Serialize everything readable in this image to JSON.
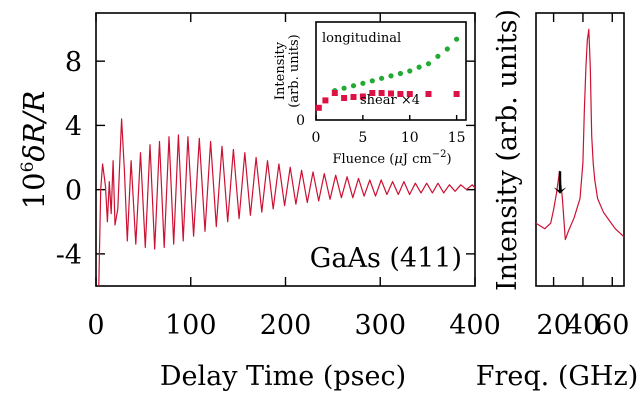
{
  "chart_data": [
    {
      "type": "line",
      "xlabel": "Delay Time (psec)",
      "ylabel_parts": [
        "10",
        "6",
        "δR/R"
      ],
      "annotation": "GaAs (411)",
      "xlim": [
        0,
        400
      ],
      "ylim": [
        -6,
        11
      ],
      "xticks": [
        0,
        100,
        200,
        300,
        400
      ],
      "yticks": [
        -4,
        0,
        4,
        8
      ],
      "ytick_labels": [
        "-4",
        "0",
        "4",
        "8"
      ],
      "series": [
        {
          "color": "#cc1133",
          "x": [
            3,
            5,
            7,
            10,
            12,
            14,
            16,
            18,
            20,
            23,
            27,
            30,
            33,
            37,
            42,
            47,
            52,
            57,
            62,
            67,
            72,
            77,
            82,
            87,
            92,
            97,
            103,
            109,
            115,
            121,
            127,
            133,
            139,
            145,
            151,
            157,
            163,
            169,
            175,
            181,
            187,
            193,
            199,
            205,
            211,
            217,
            223,
            229,
            235,
            241,
            247,
            253,
            259,
            265,
            271,
            277,
            283,
            289,
            295,
            301,
            307,
            313,
            319,
            325,
            331,
            337,
            343,
            349,
            355,
            361,
            367,
            373,
            379,
            385,
            391,
            397,
            400
          ],
          "y": [
            -6,
            0,
            1.6,
            0.2,
            -2.0,
            0.5,
            -1.5,
            1.8,
            -2.2,
            -1.2,
            4.4,
            1.2,
            -3.2,
            1.8,
            -3.4,
            2.3,
            -3.6,
            2.8,
            -3.7,
            3.0,
            -3.6,
            3.3,
            -3.4,
            3.4,
            -3.2,
            3.3,
            -2.9,
            3.2,
            -2.6,
            3.0,
            -2.3,
            2.7,
            -2.0,
            2.5,
            -1.8,
            2.3,
            -1.6,
            2.0,
            -1.4,
            1.8,
            -1.2,
            1.6,
            -1.0,
            1.4,
            -0.9,
            1.2,
            -0.8,
            1.1,
            -0.7,
            1.0,
            -0.6,
            0.9,
            -0.5,
            0.8,
            -0.5,
            0.7,
            -0.4,
            0.6,
            -0.4,
            0.6,
            -0.3,
            0.5,
            -0.3,
            0.5,
            -0.3,
            0.4,
            -0.2,
            0.4,
            -0.2,
            0.4,
            -0.2,
            0.3,
            -0.1,
            0.3,
            0.0,
            0.3,
            0.1
          ]
        }
      ]
    },
    {
      "type": "scatter",
      "xlabel_parts": [
        "Fluence (",
        "μ",
        "J cm",
        "−2",
        ")"
      ],
      "ylabel_lines": [
        "Intensity",
        "(arb. units)"
      ],
      "xlim": [
        0,
        16
      ],
      "ylim": [
        0,
        20
      ],
      "xticks": [
        0,
        5,
        10,
        15
      ],
      "yticks": [
        0
      ],
      "series": [
        {
          "name": "longitudinal",
          "marker": "circle",
          "color": "#22aa33",
          "x": [
            0.3,
            1,
            2,
            3,
            4,
            5,
            6,
            7,
            8,
            9,
            10,
            11,
            12,
            13,
            14,
            15
          ],
          "y": [
            2.5,
            4,
            6,
            6.5,
            7,
            7.5,
            8,
            8.5,
            9,
            9.5,
            10,
            10.8,
            11.5,
            13,
            14.5,
            16.5
          ]
        },
        {
          "name": "shear",
          "label_parts": [
            "shear ",
            "×",
            "4"
          ],
          "marker": "square",
          "color": "#dd1144",
          "x": [
            0.3,
            1,
            2,
            3,
            4,
            5,
            6,
            7,
            8,
            9,
            10,
            12,
            15
          ],
          "y": [
            2.5,
            4,
            5.5,
            4.5,
            4.7,
            4.8,
            5.5,
            5.5,
            5.4,
            5.3,
            5.3,
            5.3,
            5.3
          ]
        }
      ]
    },
    {
      "type": "line",
      "xlabel": "Freq. (GHz)",
      "ylabel": "Intensity (arb. units)",
      "xlim": [
        8,
        68
      ],
      "ylim": [
        0,
        10
      ],
      "xticks": [
        20,
        40,
        60
      ],
      "annotation": "↓",
      "series": [
        {
          "color": "#cc1133",
          "x": [
            8,
            14,
            18,
            20,
            22,
            24,
            26,
            28,
            30,
            34,
            38,
            40,
            41,
            42,
            43,
            44,
            45,
            46,
            47,
            48,
            50,
            54,
            58,
            62,
            66,
            68
          ],
          "y": [
            2.3,
            2.1,
            2.3,
            2.8,
            3.4,
            4.2,
            3.2,
            1.7,
            2.0,
            2.5,
            3.2,
            4.5,
            6.5,
            8.0,
            9.0,
            9.4,
            8.0,
            5.5,
            4.5,
            3.9,
            3.2,
            2.7,
            2.4,
            2.1,
            1.9,
            1.8
          ]
        }
      ]
    }
  ]
}
